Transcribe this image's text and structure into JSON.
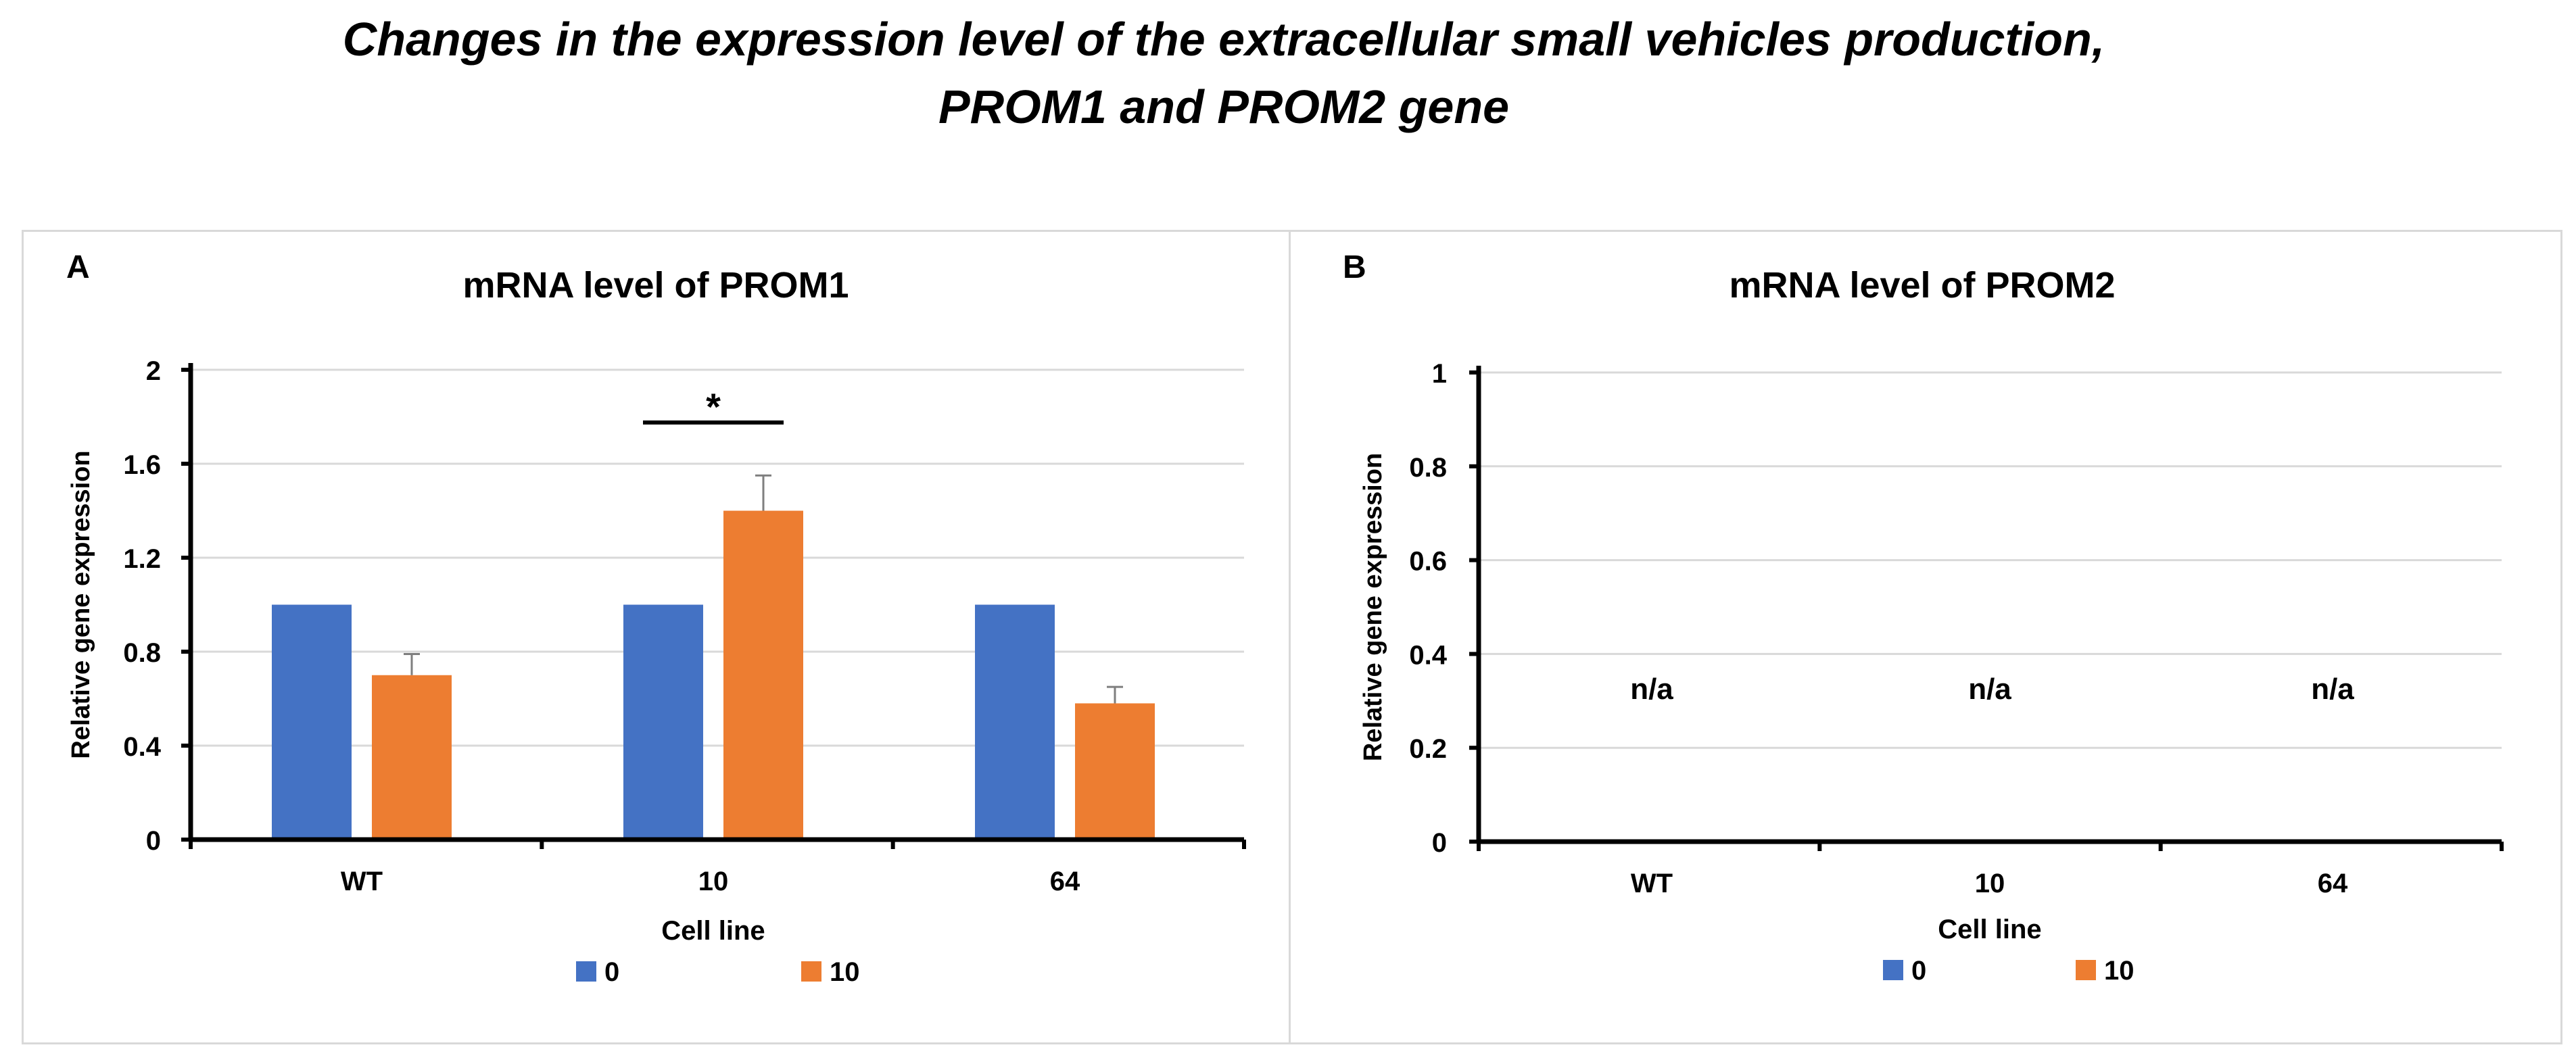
{
  "figure": {
    "title_line1": "Changes in the expression level of the extracellular small vehicles production,",
    "title_line2": "PROM1 and PROM2 gene"
  },
  "colors": {
    "series_0": "#4472c4",
    "series_10": "#ed7d31",
    "grid": "#d9d9d9",
    "axis": "#000000",
    "error_bar": "#7f7f7f"
  },
  "chart_data": [
    {
      "panel_label": "A",
      "type": "bar",
      "title": "mRNA level of PROM1",
      "xlabel": "Cell line",
      "ylabel": "Relative gene expression",
      "categories": [
        "WT",
        "10",
        "64"
      ],
      "ylim": [
        0,
        2
      ],
      "yticks": [
        0,
        0.4,
        0.8,
        1.2,
        1.6,
        2
      ],
      "ytick_labels": [
        "0",
        "0.4",
        "0.8",
        "1.2",
        "1.6",
        "2"
      ],
      "grid": true,
      "legend_position": "bottom",
      "series": [
        {
          "name": "0",
          "color": "#4472c4",
          "values": [
            1.0,
            1.0,
            1.0
          ],
          "errors": [
            null,
            null,
            null
          ]
        },
        {
          "name": "10",
          "color": "#ed7d31",
          "values": [
            0.7,
            1.4,
            0.58
          ],
          "errors": [
            0.09,
            0.15,
            0.07
          ]
        }
      ],
      "annotations": [
        {
          "text": "*",
          "category": "10",
          "span": "both-series"
        }
      ]
    },
    {
      "panel_label": "B",
      "type": "bar",
      "title": "mRNA level of PROM2",
      "xlabel": "Cell line",
      "ylabel": "Relative gene expression",
      "categories": [
        "WT",
        "10",
        "64"
      ],
      "ylim": [
        0,
        1
      ],
      "yticks": [
        0,
        0.2,
        0.4,
        0.6,
        0.8,
        1
      ],
      "ytick_labels": [
        "0",
        "0.2",
        "0.4",
        "0.6",
        "0.8",
        "1"
      ],
      "grid": true,
      "legend_position": "bottom",
      "series": [
        {
          "name": "0",
          "color": "#4472c4",
          "values": [
            null,
            null,
            null
          ]
        },
        {
          "name": "10",
          "color": "#ed7d31",
          "values": [
            null,
            null,
            null
          ]
        }
      ],
      "na_labels": [
        "n/a",
        "n/a",
        "n/a"
      ]
    }
  ]
}
